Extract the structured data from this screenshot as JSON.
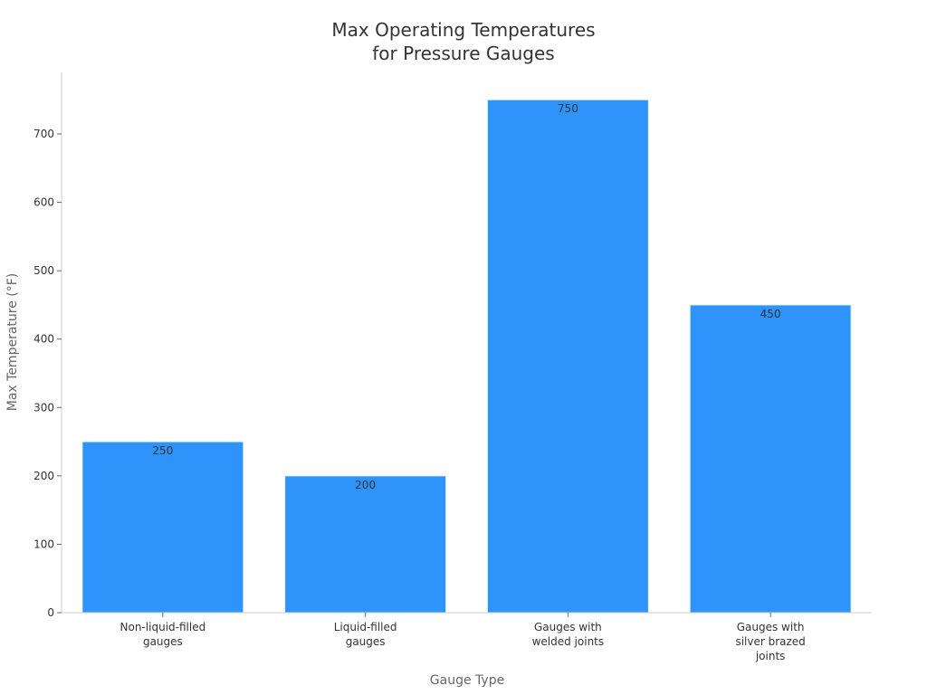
{
  "chart_data": {
    "type": "bar",
    "title_lines": [
      "Max Operating Temperatures",
      "for Pressure Gauges"
    ],
    "xlabel": "Gauge Type",
    "ylabel": "Max Temperature (°F)",
    "categories": [
      [
        "Non-liquid-filled",
        "gauges"
      ],
      [
        "Liquid-filled",
        "gauges"
      ],
      [
        "Gauges with",
        "welded joints"
      ],
      [
        "Gauges with",
        "silver brazed",
        "joints"
      ]
    ],
    "values": [
      250,
      200,
      750,
      450
    ],
    "data_labels": [
      "250",
      "200",
      "750",
      "450"
    ],
    "ylim": [
      0,
      790
    ],
    "yticks": [
      0,
      100,
      200,
      300,
      400,
      500,
      600,
      700
    ],
    "grid": false,
    "legend": "none",
    "bar_color": "#2e93fa",
    "bar_edge_color": "#e8f3ff"
  }
}
